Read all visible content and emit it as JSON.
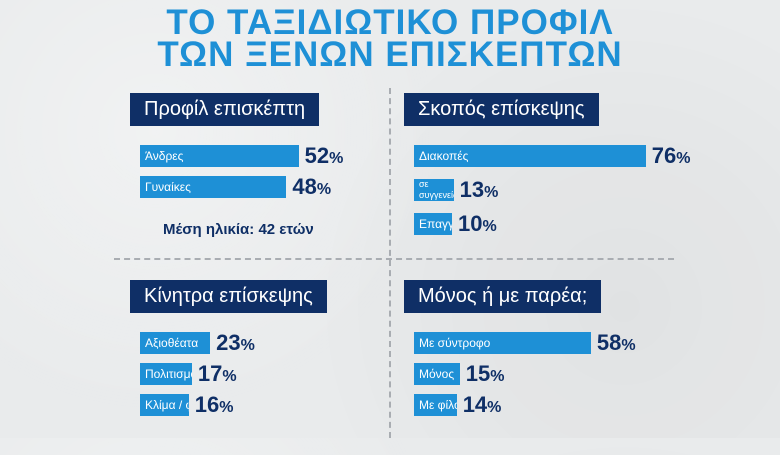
{
  "title": {
    "line1": "ΤΟ ΤΑΞΙΔΙΩΤΙΚΟ ΠΡΟΦΙΛ",
    "line2": "ΤΩΝ ΞΕΝΩΝ ΕΠΙΣΚΕΠΤΩΝ"
  },
  "colors": {
    "title": "#1e90d6",
    "heading_bg": "#0f2f66",
    "bar": "#1e90d6",
    "value_text": "#0f2f66",
    "background": "#e9ebec"
  },
  "note": "Μέση ηλικία: 42 ετών",
  "chart_data": [
    {
      "type": "bar",
      "title": "Προφίλ επισκέπτη",
      "categories": [
        "Άνδρες",
        "Γυναίκες"
      ],
      "values": [
        52,
        48
      ],
      "unit": "%"
    },
    {
      "type": "bar",
      "title": "Σκοπός επίσκεψης",
      "categories": [
        "Διακοπές",
        "Επίσκεψη σε συγγενείς / φίλους",
        "Επαγγελματικό ταξίδι"
      ],
      "values": [
        76,
        13,
        10
      ],
      "unit": "%"
    },
    {
      "type": "bar",
      "title": "Κίνητρα επίσκεψης",
      "categories": [
        "Αξιοθέατα",
        "Πολιτισμός",
        "Κλίμα / φύση"
      ],
      "values": [
        23,
        17,
        16
      ],
      "unit": "%"
    },
    {
      "type": "bar",
      "title": "Μόνος ή με παρέα;",
      "categories": [
        "Με σύντροφο",
        "Μόνος",
        "Με φίλους"
      ],
      "values": [
        58,
        15,
        14
      ],
      "unit": "%"
    }
  ]
}
